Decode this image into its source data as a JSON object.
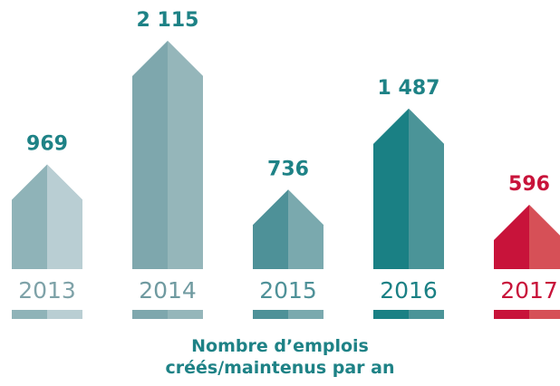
{
  "chart_data": {
    "type": "bar",
    "title": "Nombre d’emplois créés/maintenus par an",
    "categories": [
      "2013",
      "2014",
      "2015",
      "2016",
      "2017"
    ],
    "values": [
      969,
      2115,
      736,
      1487,
      596
    ],
    "value_labels": [
      "969",
      "2 115",
      "736",
      "1 487",
      "596"
    ],
    "colors": [
      [
        "#8fb3b8",
        "#b9ced3"
      ],
      [
        "#7ea7ad",
        "#95b6ba"
      ],
      [
        "#4e9198",
        "#7aa9ae"
      ],
      [
        "#1a8084",
        "#4b9498"
      ],
      [
        "#c8133a",
        "#d65057"
      ]
    ],
    "label_colors": [
      "#1e8286",
      "#1e8286",
      "#1e8286",
      "#1e8286",
      "#c8133a"
    ],
    "category_colors": [
      "#7ea2a8",
      "#6f9aa0",
      "#4e9198",
      "#1a8084",
      "#c8133a"
    ]
  }
}
